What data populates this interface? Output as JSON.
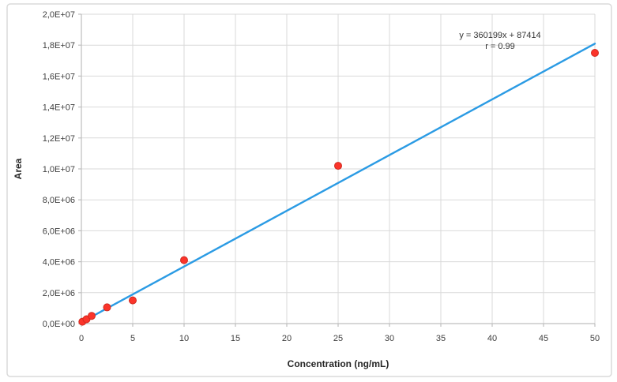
{
  "chart_data": {
    "type": "scatter",
    "title": "",
    "xlabel": "Concentration (ng/mL)",
    "ylabel": "Area",
    "xlim": [
      0,
      50
    ],
    "ylim": [
      0,
      20000000
    ],
    "grid": true,
    "legend": "none",
    "x_ticks": [
      0,
      5,
      10,
      15,
      20,
      25,
      30,
      35,
      40,
      45,
      50
    ],
    "x_tick_labels": [
      "0",
      "5",
      "10",
      "15",
      "20",
      "25",
      "30",
      "35",
      "40",
      "45",
      "50"
    ],
    "y_ticks": [
      0,
      2000000,
      4000000,
      6000000,
      8000000,
      10000000,
      12000000,
      14000000,
      16000000,
      18000000,
      20000000
    ],
    "y_tick_labels": [
      "0,0E+00",
      "2,0E+06",
      "4,0E+06",
      "6,0E+06",
      "8,0E+06",
      "1,0E+07",
      "1,2E+07",
      "1,4E+07",
      "1,6E+07",
      "1,8E+07",
      "2,0E+07"
    ],
    "points": [
      [
        0.1,
        120000
      ],
      [
        0.5,
        280000
      ],
      [
        1,
        500000
      ],
      [
        2.5,
        1050000
      ],
      [
        5,
        1500000
      ],
      [
        10,
        4100000
      ],
      [
        25,
        10200000
      ],
      [
        50,
        17500000
      ]
    ],
    "trendline": {
      "slope": 360199,
      "intercept": 87414,
      "x_start": 0,
      "x_end": 50,
      "equation": "y = 360199x + 87414",
      "r_label": "r = 0.99"
    },
    "colors": {
      "line": "#2b9be4",
      "point_fill": "#fb342a",
      "point_edge": "#cf2b20",
      "grid": "#d9d9d9",
      "axis": "#bfbfbf",
      "border": "#dadada",
      "text": "#404040"
    }
  }
}
